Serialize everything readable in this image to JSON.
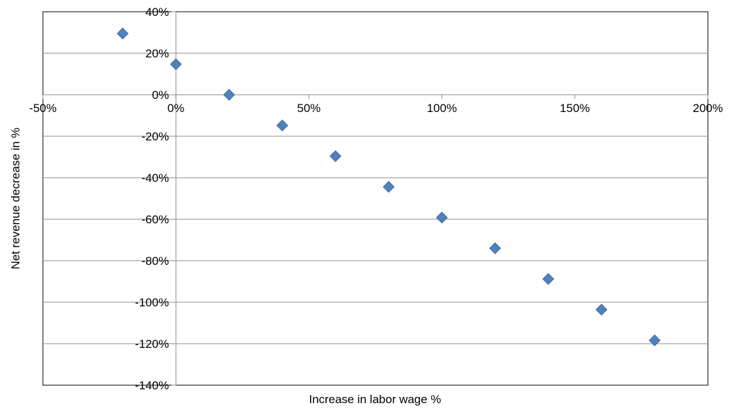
{
  "chart_data": {
    "type": "scatter",
    "title": "",
    "xlabel": "Increase in labor wage %",
    "ylabel": "Net revenue decrease in %",
    "xlim": [
      -50,
      200
    ],
    "ylim": [
      -140,
      40
    ],
    "x_ticks": [
      -50,
      0,
      50,
      100,
      150,
      200
    ],
    "x_tick_labels": [
      "-50%",
      "0%",
      "50%",
      "100%",
      "150%",
      "200%"
    ],
    "y_ticks": [
      40,
      20,
      0,
      -20,
      -40,
      -60,
      -80,
      -100,
      -120,
      -140
    ],
    "y_tick_labels": [
      "40%",
      "20%",
      "0%",
      "-20%",
      "-40%",
      "-60%",
      "-80%",
      "-100%",
      "-120%",
      "-140%"
    ],
    "grid": true,
    "legend": "none",
    "marker": "diamond",
    "color": "#4F81BD",
    "series": [
      {
        "x": [
          -20,
          0,
          20,
          40,
          60,
          80,
          100,
          120,
          140,
          160,
          180
        ],
        "y": [
          29.5,
          14.7,
          0,
          -14.8,
          -29.6,
          -44.4,
          -59.2,
          -74.0,
          -88.8,
          -103.6,
          -118.4
        ]
      }
    ]
  }
}
